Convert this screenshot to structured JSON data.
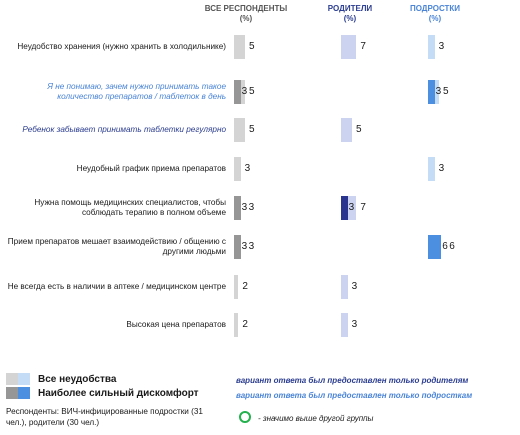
{
  "headers": {
    "all": {
      "title": "ВСЕ РЕСПОНДЕНТЫ",
      "unit": "(%)"
    },
    "parents": {
      "title": "РОДИТЕЛИ",
      "unit": "(%)"
    },
    "teens": {
      "title": "ПОДРОСТКИ",
      "unit": "(%)"
    }
  },
  "colors": {
    "all_light": "#d4d4d4",
    "all_dark": "#969696",
    "parents_light": "#ccd3f0",
    "parents_dark": "#2a3590",
    "teens_light": "#c5dcf7",
    "teens_dark": "#4c8fe0",
    "parents_note_text": "#2b3d8f",
    "teens_note_text": "#4a84d6",
    "row_label_parents": "#2b3d8f",
    "row_label_teens": "#4a84d6",
    "significance_circle": "#22b14c"
  },
  "chart_data": {
    "type": "bar",
    "title": "",
    "value_unit": "%",
    "series": [
      {
        "name": "ВСЕ РЕСПОНДЕНТЫ"
      },
      {
        "name": "РОДИТЕЛИ"
      },
      {
        "name": "ПОДРОСТКИ"
      }
    ],
    "categories": [
      {
        "label": "Неудобство хранения (нужно хранить в холодильнике)",
        "only": null,
        "all": {
          "inconvenience": 5,
          "strong": null
        },
        "parents": {
          "inconvenience": 7,
          "strong": null
        },
        "teens": {
          "inconvenience": 3,
          "strong": null
        }
      },
      {
        "label": "Я не понимаю, зачем нужно принимать такое количество препаратов / таблеток в день",
        "only": "teens",
        "all": {
          "inconvenience": 5,
          "strong": 3
        },
        "parents": null,
        "teens": {
          "inconvenience": 5,
          "strong": 3
        }
      },
      {
        "label": "Ребенок забывает принимать таблетки регулярно",
        "only": "parents",
        "all": {
          "inconvenience": 5,
          "strong": null
        },
        "parents": {
          "inconvenience": 5,
          "strong": null
        },
        "teens": null
      },
      {
        "label": "Неудобный график приема препаратов",
        "only": null,
        "all": {
          "inconvenience": 3,
          "strong": null
        },
        "parents": null,
        "teens": {
          "inconvenience": 3,
          "strong": null
        }
      },
      {
        "label": "Нужна помощь медицинских специалистов, чтобы соблюдать терапию в полном объеме",
        "only": null,
        "all": {
          "inconvenience": 3,
          "strong": 3
        },
        "parents": {
          "inconvenience": 7,
          "strong": 3
        },
        "teens": null
      },
      {
        "label": "Прием препаратов мешает взаимодействию / общению с другими людьми",
        "only": null,
        "all": {
          "inconvenience": 3,
          "strong": 3
        },
        "parents": null,
        "teens": {
          "inconvenience": 6,
          "strong": 6
        }
      },
      {
        "label": "Не всегда есть в наличии в аптеке / медицинском центре",
        "only": null,
        "all": {
          "inconvenience": 2,
          "strong": null
        },
        "parents": {
          "inconvenience": 3,
          "strong": null
        },
        "teens": null
      },
      {
        "label": "Высокая цена препаратов",
        "only": null,
        "all": {
          "inconvenience": 2,
          "strong": null
        },
        "parents": {
          "inconvenience": 3,
          "strong": null
        },
        "teens": null
      }
    ]
  },
  "legend": {
    "inconvenience": "Все неудобства",
    "strong": "Наиболее сильный дискомфорт"
  },
  "notes": {
    "parents_only": {
      "text": "вариант ответа был предоставлен только ",
      "who": "родителям"
    },
    "teens_only": {
      "text": "вариант ответа был предоставлен только ",
      "who": "подросткам"
    }
  },
  "respondents": "Респонденты: ВИЧ-инфицированные подростки (31 чел.), родители (30 чел.)",
  "significance": "- значимо выше другой группы"
}
